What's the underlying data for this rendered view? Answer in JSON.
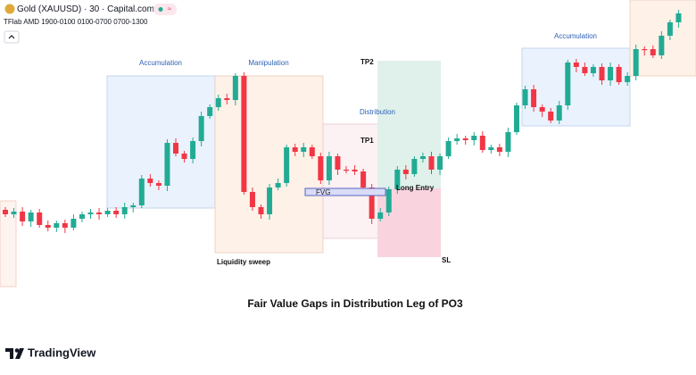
{
  "header": {
    "symbol": "Gold (XAUUSD) · 30 · Capital.com",
    "indicator": "TFlab AMD 1900-0100 0100-0700 0700-1300"
  },
  "annotations": {
    "accumulation_left": "Accumulation",
    "manipulation": "Manipulation",
    "distribution": "Distribution",
    "tp2": "TP2",
    "tp1": "TP1",
    "fvg": "FVG",
    "long_entry": "Long Entry",
    "sl": "SL",
    "liquidity_sweep": "Liquidity sweep",
    "accumulation_right": "Accumulation"
  },
  "caption": "Fair Value Gaps in Distribution Leg of PO3",
  "brand": "TradingView"
}
